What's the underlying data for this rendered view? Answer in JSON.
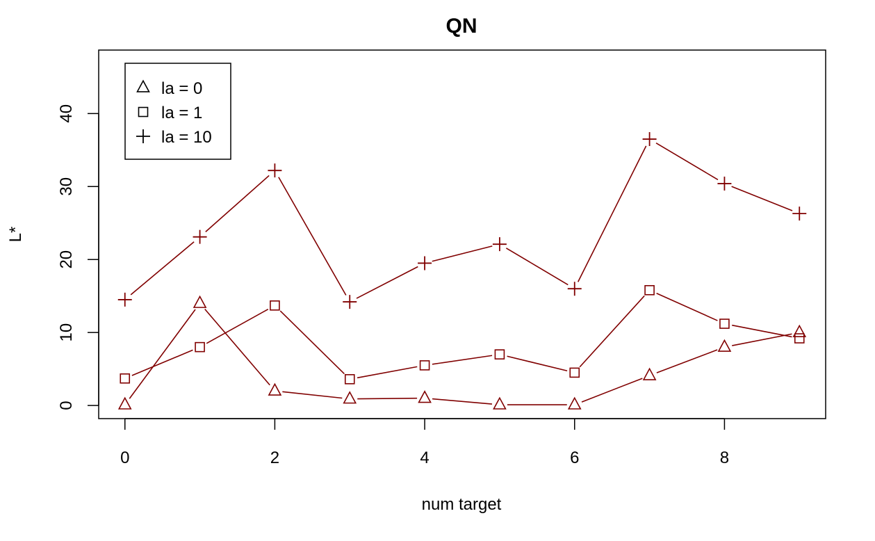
{
  "chart_data": {
    "type": "line",
    "title": "QN",
    "xlabel": "num target",
    "ylabel": "L*",
    "x": [
      0,
      1,
      2,
      3,
      4,
      5,
      6,
      7,
      8,
      9
    ],
    "xlim": [
      -0.35,
      9.35
    ],
    "ylim": [
      -1.8,
      48.7
    ],
    "xticks": [
      0,
      2,
      4,
      6,
      8
    ],
    "yticks": [
      0,
      10,
      20,
      30,
      40
    ],
    "grid": false,
    "legend_position": "top-left",
    "line_color": "#800000",
    "series": [
      {
        "name": "la = 0",
        "marker": "triangle",
        "values": [
          0.1,
          14.0,
          2.0,
          0.9,
          1.0,
          0.1,
          0.1,
          4.1,
          8.0,
          10.0
        ]
      },
      {
        "name": "la = 1",
        "marker": "square",
        "values": [
          3.7,
          8.0,
          13.7,
          3.6,
          5.5,
          7.0,
          4.5,
          15.8,
          11.2,
          9.2
        ]
      },
      {
        "name": "la = 10",
        "marker": "plus",
        "values": [
          14.5,
          23.1,
          32.2,
          14.2,
          19.5,
          22.1,
          16.0,
          36.5,
          30.4,
          26.3
        ]
      }
    ]
  }
}
